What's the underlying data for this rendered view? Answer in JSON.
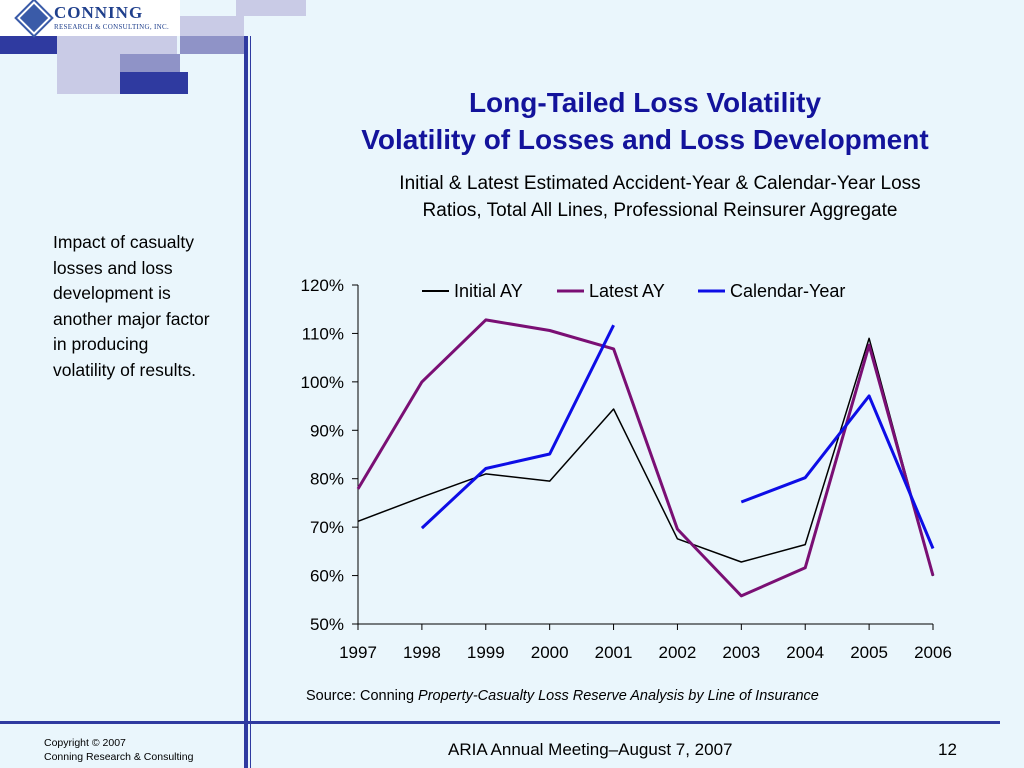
{
  "logo": {
    "name": "CONNING",
    "sub": "RESEARCH & CONSULTING, INC."
  },
  "title_line1": "Long-Tailed Loss Volatility",
  "title_line2": "Volatility of Losses and Loss Development",
  "subtitle_line1": "Initial & Latest Estimated Accident-Year & Calendar-Year Loss",
  "subtitle_line2": "Ratios, Total All Lines, Professional Reinsurer Aggregate",
  "side_note": "Impact of casualty losses and loss development is another major factor in producing volatility of results.",
  "source_prefix": "Source: Conning ",
  "source_title": "Property-Casualty Loss Reserve Analysis by Line of Insurance",
  "footer": {
    "copyright": "Copyright © 2007",
    "company": "Conning Research & Consulting",
    "meeting": "ARIA Annual Meeting–August 7, 2007",
    "page": "12"
  },
  "colors": {
    "title": "#13139b",
    "initial": "#000000",
    "latest": "#7a0f74",
    "calendar": "#0d0de6"
  },
  "chart_data": {
    "type": "line",
    "categories": [
      "1997",
      "1998",
      "1999",
      "2000",
      "2001",
      "2002",
      "2003",
      "2004",
      "2005",
      "2006"
    ],
    "ylim": [
      50,
      120
    ],
    "yticks": [
      "50%",
      "60%",
      "70%",
      "80%",
      "90%",
      "100%",
      "110%",
      "120%"
    ],
    "legend": "top",
    "grid": false,
    "series": [
      {
        "name": "Initial AY",
        "color": "#000000",
        "values": [
          71.2,
          76.2,
          81.0,
          79.5,
          94.4,
          67.6,
          62.8,
          66.4,
          109.0,
          59.9
        ]
      },
      {
        "name": "Latest AY",
        "color": "#7a0f74",
        "values": [
          77.9,
          100.0,
          112.8,
          110.6,
          106.8,
          69.6,
          55.8,
          61.6,
          107.6,
          60.0
        ]
      },
      {
        "name": "Calendar-Year",
        "color": "#0d0de6",
        "values": [
          null,
          69.8,
          82.1,
          85.1,
          111.7,
          null,
          75.2,
          80.2,
          97.1,
          65.6
        ]
      }
    ]
  }
}
